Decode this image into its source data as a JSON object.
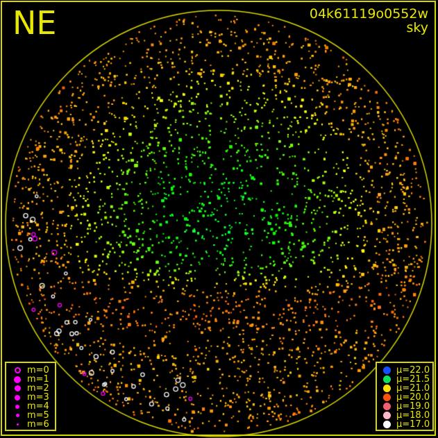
{
  "direction_label": "NE",
  "title": {
    "id": "04k61119o0552w",
    "subtitle": "sky"
  },
  "colors": {
    "frame": "#d8d800",
    "horizon_circle": "#d8d800",
    "text": "#e8e800",
    "magnitude_symbol": "#ff00ff"
  },
  "magnitude_legend": [
    {
      "label": "m=0",
      "style": "ring"
    },
    {
      "label": "m=1",
      "style": "filled"
    },
    {
      "label": "m=2",
      "style": "filled"
    },
    {
      "label": "m=3",
      "style": "filled"
    },
    {
      "label": "m=4",
      "style": "filled"
    },
    {
      "label": "m=5",
      "style": "filled"
    },
    {
      "label": "m=6",
      "style": "filled"
    }
  ],
  "sky_brightness_legend": [
    {
      "label": "μ=22.0",
      "color": "#1450ff"
    },
    {
      "label": "μ=21.5",
      "color": "#10e060"
    },
    {
      "label": "μ=21.0",
      "color": "#ffe000"
    },
    {
      "label": "μ=20.0",
      "color": "#ff5010"
    },
    {
      "label": "μ=19.0",
      "color": "#f06070"
    },
    {
      "label": "μ=18.0",
      "color": "#ffb8c8"
    },
    {
      "label": "μ=17.0",
      "color": "#ffffff"
    }
  ]
}
